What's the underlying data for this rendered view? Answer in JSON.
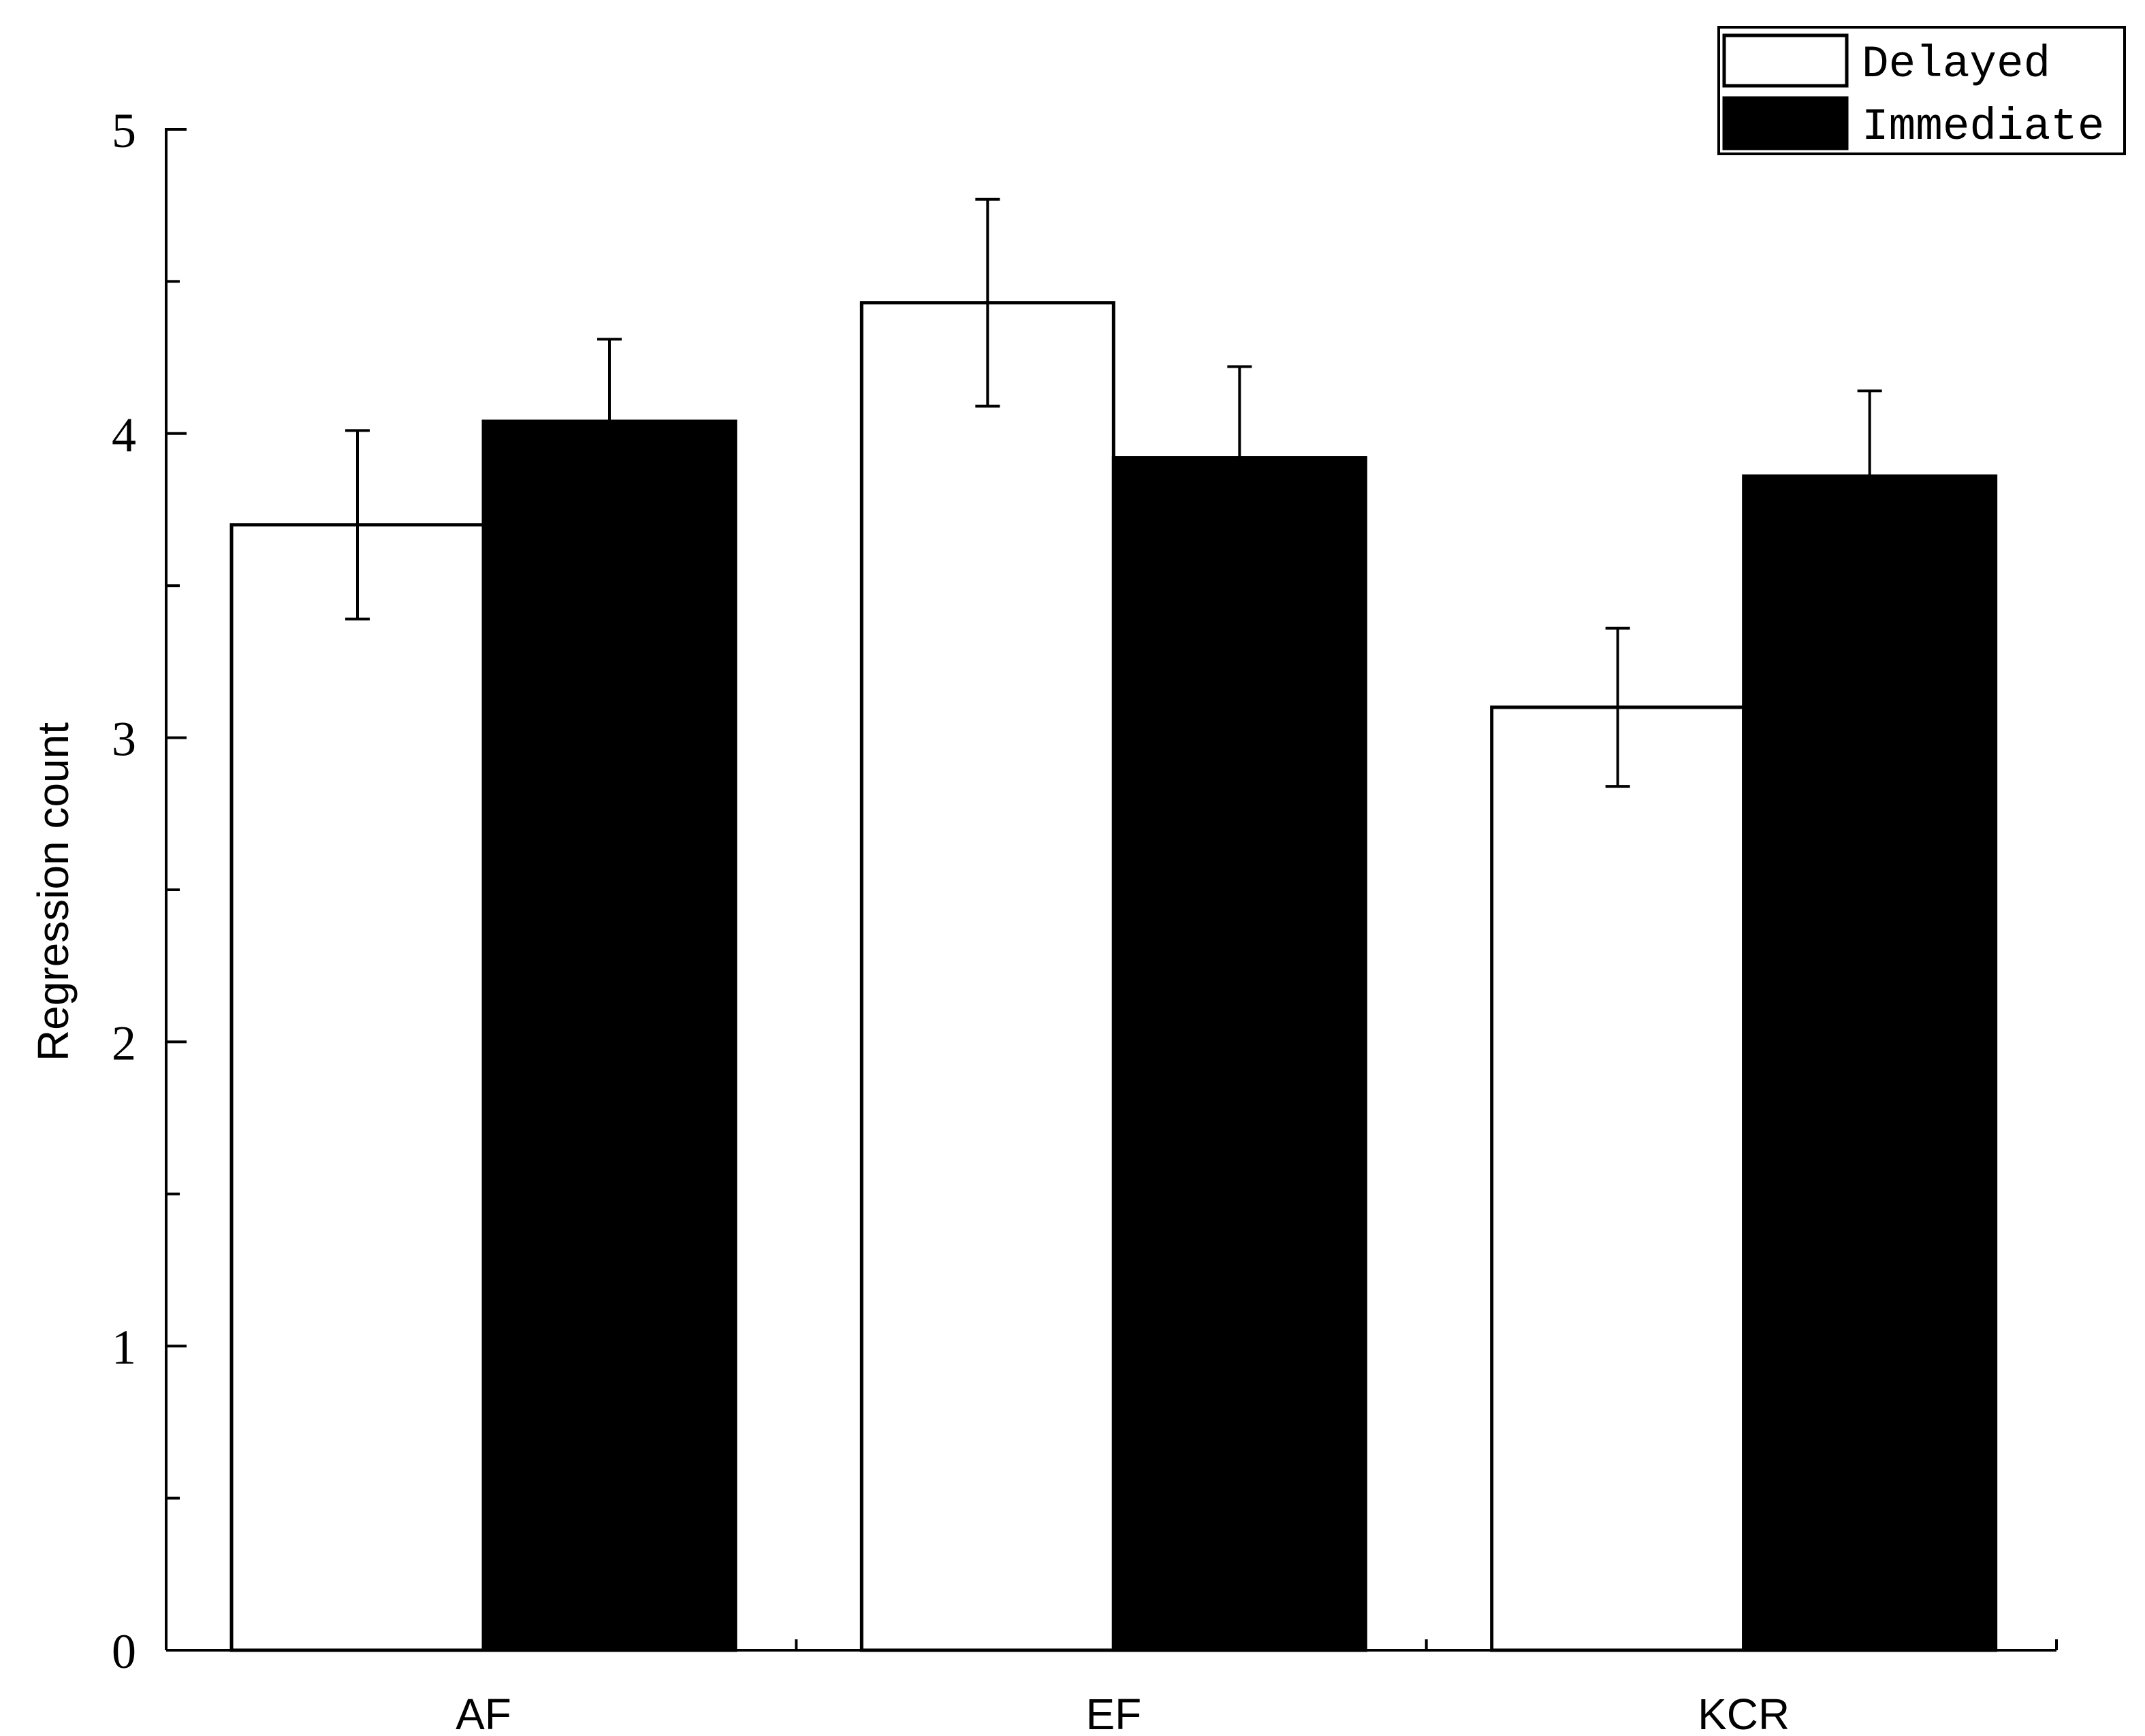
{
  "chart_data": {
    "type": "bar",
    "categories": [
      "AF",
      "EF",
      "KCR"
    ],
    "series": [
      {
        "name": "Delayed",
        "values": [
          3.7,
          4.43,
          3.1
        ],
        "errors": [
          0.31,
          0.34,
          0.26
        ],
        "color": "#ffffff"
      },
      {
        "name": "Immediate",
        "values": [
          4.04,
          3.92,
          3.86
        ],
        "errors": [
          0.27,
          0.3,
          0.28
        ],
        "color": "#000000"
      }
    ],
    "title": "",
    "xlabel": "",
    "ylabel": "Regression count",
    "ylim": [
      0,
      5
    ],
    "yticks": [
      0,
      1,
      2,
      3,
      4,
      5
    ],
    "ytick_labels": [
      "0",
      "1",
      "2",
      "3",
      "4",
      "5"
    ],
    "grid": false,
    "legend_position": "top-right"
  }
}
